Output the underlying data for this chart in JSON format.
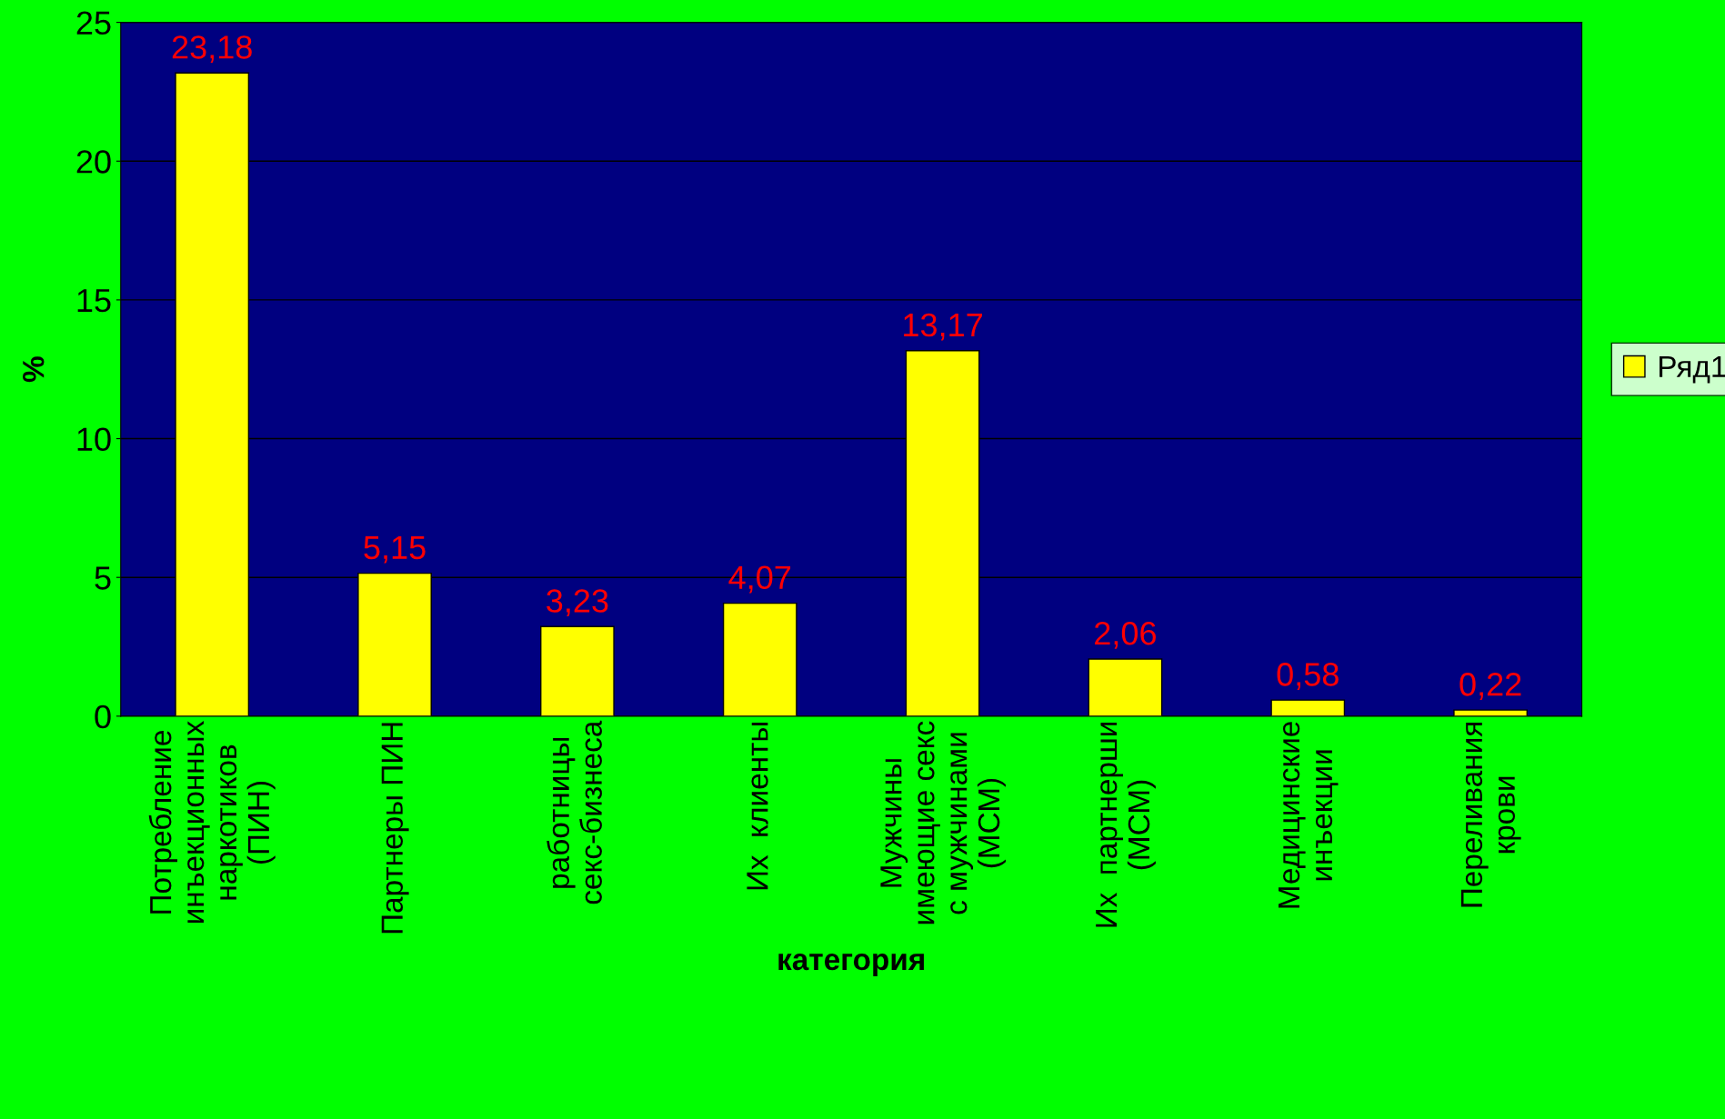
{
  "chart_data": {
    "type": "bar",
    "xlabel": "категория",
    "ylabel": "%",
    "categories": [
      "Потребление\nинъекционных\nнаркотиков\n(ПИН)",
      "Партнеры ПИН",
      "работницы\nсекс-бизнеса",
      "Их  клиенты",
      "Мужчины\nимеющие секс\nс мужчинами\n(МСМ)",
      "Их  партнерши\n(МСМ)",
      "Медицинские\nинъекции",
      "Переливания\nкрови"
    ],
    "series": [
      {
        "name": "Ряд1",
        "color": "#ffff00",
        "values": [
          23.18,
          5.15,
          3.23,
          4.07,
          13.17,
          2.06,
          0.58,
          0.22
        ],
        "value_labels": [
          "23,18",
          "5,15",
          "3,23",
          "4,07",
          "13,17",
          "2,06",
          "0,58",
          "0,22"
        ]
      }
    ],
    "ylim": [
      0,
      25
    ],
    "yticks": [
      0,
      5,
      10,
      15,
      20,
      25
    ],
    "grid": "y",
    "legend": "right"
  }
}
